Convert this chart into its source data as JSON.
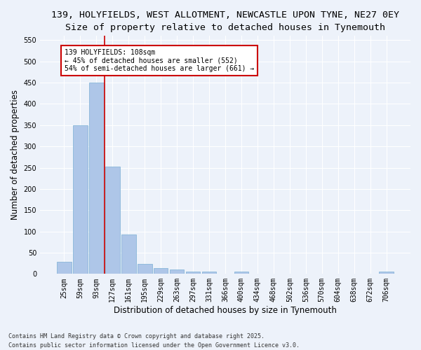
{
  "title_line1": "139, HOLYFIELDS, WEST ALLOTMENT, NEWCASTLE UPON TYNE, NE27 0EY",
  "title_line2": "Size of property relative to detached houses in Tynemouth",
  "xlabel": "Distribution of detached houses by size in Tynemouth",
  "ylabel": "Number of detached properties",
  "categories": [
    "25sqm",
    "59sqm",
    "93sqm",
    "127sqm",
    "161sqm",
    "195sqm",
    "229sqm",
    "263sqm",
    "297sqm",
    "331sqm",
    "366sqm",
    "400sqm",
    "434sqm",
    "468sqm",
    "502sqm",
    "536sqm",
    "570sqm",
    "604sqm",
    "638sqm",
    "672sqm",
    "706sqm"
  ],
  "values": [
    28,
    350,
    450,
    252,
    92,
    23,
    14,
    10,
    6,
    6,
    0,
    5,
    0,
    0,
    0,
    0,
    0,
    0,
    0,
    0,
    5
  ],
  "bar_color": "#aec6e8",
  "bar_edge_color": "#7aafd4",
  "vline_color": "#cc0000",
  "annotation_line1": "139 HOLYFIELDS: 108sqm",
  "annotation_line2": "← 45% of detached houses are smaller (552)",
  "annotation_line3": "54% of semi-detached houses are larger (661) →",
  "annotation_box_color": "#cc0000",
  "annotation_bg_color": "#ffffff",
  "ylim": [
    0,
    560
  ],
  "yticks": [
    0,
    50,
    100,
    150,
    200,
    250,
    300,
    350,
    400,
    450,
    500,
    550
  ],
  "footer_line1": "Contains HM Land Registry data © Crown copyright and database right 2025.",
  "footer_line2": "Contains public sector information licensed under the Open Government Licence v3.0.",
  "bg_color": "#edf2fa",
  "plot_bg_color": "#edf2fa",
  "grid_color": "#ffffff",
  "title_fontsize": 9.5,
  "subtitle_fontsize": 9,
  "tick_fontsize": 7,
  "label_fontsize": 8.5,
  "footer_fontsize": 6.0
}
